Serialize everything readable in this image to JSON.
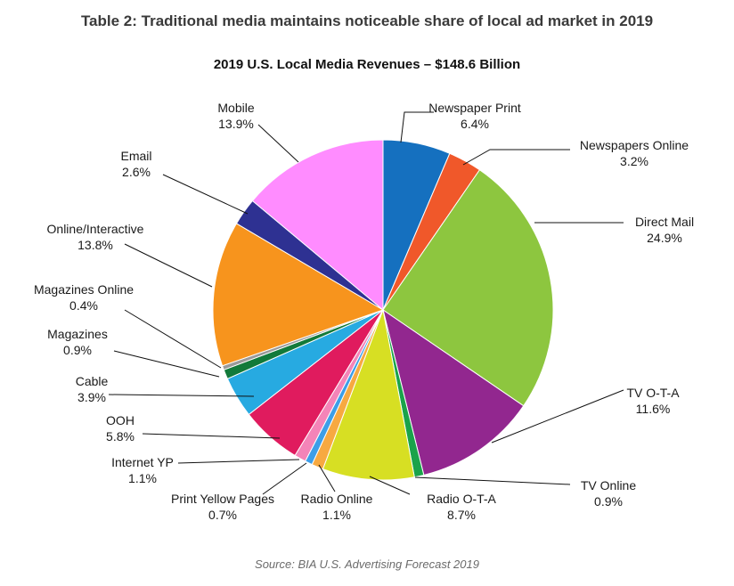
{
  "header": {
    "title": "Table 2: Traditional media maintains noticeable share of local ad market in 2019"
  },
  "footer": {
    "source": "Source: BIA U.S. Advertising Forecast 2019"
  },
  "chart_data": {
    "type": "pie",
    "title": "2019 U.S. Local Media Revenues – $148.6 Billion",
    "start": "12 o'clock",
    "direction": "clockwise",
    "slices": [
      {
        "label": "Newspaper Print",
        "value": 6.4,
        "value_label": "6.4%",
        "color": "#1570bf"
      },
      {
        "label": "Newspapers Online",
        "value": 3.2,
        "value_label": "3.2%",
        "color": "#f0582a"
      },
      {
        "label": "Direct Mail",
        "value": 24.9,
        "value_label": "24.9%",
        "color": "#8dc63f"
      },
      {
        "label": "TV O-T-A",
        "value": 11.6,
        "value_label": "11.6%",
        "color": "#92278f"
      },
      {
        "label": "TV Online",
        "value": 0.9,
        "value_label": "0.9%",
        "color": "#1aa34a"
      },
      {
        "label": "Radio O-T-A",
        "value": 8.7,
        "value_label": "8.7%",
        "color": "#d7df23"
      },
      {
        "label": "Radio Online",
        "value": 1.1,
        "value_label": "1.1%",
        "color": "#f7a941"
      },
      {
        "label": "Print Yellow Pages",
        "value": 0.7,
        "value_label": "0.7%",
        "color": "#3d9ee8"
      },
      {
        "label": "Internet YP",
        "value": 1.1,
        "value_label": "1.1%",
        "color": "#f484b8"
      },
      {
        "label": "OOH",
        "value": 5.8,
        "value_label": "5.8%",
        "color": "#e01b5e"
      },
      {
        "label": "Cable",
        "value": 3.9,
        "value_label": "3.9%",
        "color": "#27aae1"
      },
      {
        "label": "Magazines",
        "value": 0.9,
        "value_label": "0.9%",
        "color": "#127a3a"
      },
      {
        "label": "Magazines Online",
        "value": 0.4,
        "value_label": "0.4%",
        "color": "#9a9a9a"
      },
      {
        "label": "Online/Interactive",
        "value": 13.8,
        "value_label": "13.8%",
        "color": "#f7941d"
      },
      {
        "label": "Email",
        "value": 2.6,
        "value_label": "2.6%",
        "color": "#2e3192"
      },
      {
        "label": "Mobile",
        "value": 13.9,
        "value_label": "13.9%",
        "color": "#ff8cff"
      }
    ]
  }
}
